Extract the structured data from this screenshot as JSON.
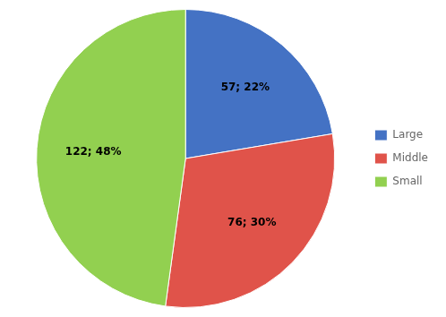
{
  "chart_data": {
    "type": "pie",
    "categories": [
      "Large",
      "Middle",
      "Small"
    ],
    "values": [
      57,
      76,
      122
    ],
    "value_labels": [
      "57; 22%",
      "76; 30%",
      "122; 48%"
    ],
    "colors": [
      "#4472C4",
      "#E0534A",
      "#92D050"
    ],
    "data_labels": true,
    "legend": "right"
  }
}
